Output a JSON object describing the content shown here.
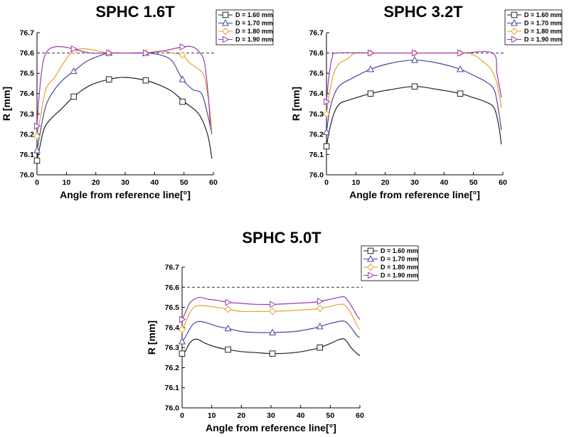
{
  "series_styles": [
    {
      "name": "D = 1.60 mm",
      "color": "#222222",
      "marker": "square"
    },
    {
      "name": "D = 1.70 mm",
      "color": "#4646a0",
      "marker": "triangle-up"
    },
    {
      "name": "D = 1.80 mm",
      "color": "#e8a030",
      "marker": "diamond"
    },
    {
      "name": "D = 1.90 mm",
      "color": "#9a3ab5",
      "marker": "triangle-right"
    }
  ],
  "chart_data": [
    {
      "type": "line",
      "title": "SPHC 1.6T",
      "xlabel": "Angle from reference line[°]",
      "ylabel": "R [mm]",
      "xlim": [
        0,
        60
      ],
      "ylim": [
        76.0,
        76.7
      ],
      "xticks": [
        "0",
        "10",
        "20",
        "30",
        "40",
        "50",
        "60"
      ],
      "yticks": [
        "76.0",
        "76.1",
        "76.2",
        "76.3",
        "76.4",
        "76.5",
        "76.6",
        "76.7"
      ],
      "reference_line": 76.6,
      "legend": "top-right",
      "series": [
        {
          "name": "D = 1.60 mm",
          "x": [
            0,
            1,
            2.5,
            5,
            8,
            12.5,
            18,
            24.5,
            30,
            37,
            42,
            46,
            50,
            55,
            58,
            59.5
          ],
          "y": [
            76.07,
            76.14,
            76.23,
            76.28,
            76.32,
            76.385,
            76.44,
            76.47,
            76.48,
            76.465,
            76.44,
            76.41,
            76.36,
            76.3,
            76.2,
            76.08
          ],
          "markers_x": [
            0,
            12.5,
            24.5,
            37,
            49.5
          ],
          "markers_y": [
            76.07,
            76.385,
            76.47,
            76.465,
            76.36
          ]
        },
        {
          "name": "D = 1.70 mm",
          "x": [
            0,
            1,
            3,
            6,
            9,
            12.5,
            17,
            22,
            25,
            30,
            37,
            42,
            46,
            49.5,
            53,
            56,
            58,
            59.5
          ],
          "y": [
            76.12,
            76.2,
            76.34,
            76.42,
            76.47,
            76.51,
            76.56,
            76.59,
            76.6,
            76.6,
            76.6,
            76.59,
            76.56,
            76.47,
            76.42,
            76.4,
            76.3,
            76.2
          ],
          "markers_x": [
            0,
            12.5,
            24.5,
            37,
            49.5
          ],
          "markers_y": [
            76.12,
            76.51,
            76.6,
            76.6,
            76.47
          ]
        },
        {
          "name": "D = 1.80 mm",
          "x": [
            0,
            1,
            3,
            6,
            9,
            12.5,
            17,
            24.5,
            30,
            37,
            42,
            46,
            49.5,
            52,
            55,
            57,
            58.5,
            59.5
          ],
          "y": [
            76.19,
            76.27,
            76.42,
            76.48,
            76.55,
            76.61,
            76.62,
            76.6,
            76.6,
            76.6,
            76.61,
            76.6,
            76.59,
            76.55,
            76.52,
            76.48,
            76.35,
            76.22
          ],
          "markers_x": [
            0,
            12.5,
            24.5,
            37,
            49.5
          ],
          "markers_y": [
            76.19,
            76.61,
            76.6,
            76.6,
            76.59
          ]
        },
        {
          "name": "D = 1.90 mm",
          "x": [
            0,
            0.8,
            2,
            3.5,
            6,
            9,
            12.5,
            18,
            24.5,
            30,
            37,
            43,
            49.5,
            53,
            55.5,
            57,
            58.2,
            59
          ],
          "y": [
            76.24,
            76.4,
            76.55,
            76.61,
            76.63,
            76.63,
            76.62,
            76.6,
            76.6,
            76.6,
            76.6,
            76.61,
            76.63,
            76.63,
            76.6,
            76.55,
            76.4,
            76.24
          ],
          "markers_x": [
            0,
            12.5,
            24.5,
            37,
            49.5
          ],
          "markers_y": [
            76.24,
            76.62,
            76.6,
            76.6,
            76.63
          ]
        }
      ]
    },
    {
      "type": "line",
      "title": "SPHC 3.2T",
      "xlabel": "Angle from reference line[°]",
      "ylabel": "R [mm]",
      "xlim": [
        0,
        60
      ],
      "ylim": [
        76.0,
        76.7
      ],
      "xticks": [
        "0",
        "10",
        "20",
        "30",
        "40",
        "50",
        "60"
      ],
      "yticks": [
        "76.0",
        "76.1",
        "76.2",
        "76.3",
        "76.4",
        "76.5",
        "76.6",
        "76.7"
      ],
      "reference_line": 76.6,
      "legend": "top-right",
      "series": [
        {
          "name": "D = 1.60 mm",
          "x": [
            0,
            1,
            2.5,
            4.5,
            8,
            15,
            22,
            30,
            38,
            45.5,
            50,
            54,
            57,
            58.5,
            59.5
          ],
          "y": [
            76.14,
            76.22,
            76.3,
            76.35,
            76.37,
            76.4,
            76.42,
            76.435,
            76.42,
            76.4,
            76.38,
            76.36,
            76.33,
            76.25,
            76.15
          ],
          "markers_x": [
            0,
            15,
            30,
            45.5
          ],
          "markers_y": [
            76.14,
            76.4,
            76.435,
            76.4
          ]
        },
        {
          "name": "D = 1.70 mm",
          "x": [
            0,
            1,
            2.5,
            4.5,
            8,
            15,
            22,
            30,
            38,
            45.5,
            50,
            54,
            57,
            58.5,
            59.5
          ],
          "y": [
            76.21,
            76.31,
            76.39,
            76.44,
            76.47,
            76.52,
            76.55,
            76.565,
            76.55,
            76.52,
            76.49,
            76.46,
            76.42,
            76.32,
            76.22
          ],
          "markers_x": [
            0,
            15,
            30,
            45.5
          ],
          "markers_y": [
            76.21,
            76.52,
            76.565,
            76.52
          ]
        },
        {
          "name": "D = 1.80 mm",
          "x": [
            0,
            1,
            2.5,
            4.5,
            7,
            10,
            15,
            30,
            45.5,
            50,
            53,
            56,
            58,
            59.5
          ],
          "y": [
            76.3,
            76.4,
            76.5,
            76.55,
            76.57,
            76.6,
            76.6,
            76.6,
            76.6,
            76.59,
            76.56,
            76.52,
            76.45,
            76.33
          ],
          "markers_x": [
            0,
            15,
            30,
            45.5
          ],
          "markers_y": [
            76.3,
            76.6,
            76.6,
            76.6
          ]
        },
        {
          "name": "D = 1.90 mm",
          "x": [
            0,
            0.8,
            2,
            3.5,
            15,
            30,
            45.5,
            56.5,
            58,
            59.5
          ],
          "y": [
            76.36,
            76.48,
            76.58,
            76.6,
            76.6,
            76.6,
            76.6,
            76.6,
            76.5,
            76.38
          ],
          "markers_x": [
            0,
            15,
            30,
            45.5
          ],
          "markers_y": [
            76.36,
            76.6,
            76.6,
            76.6
          ]
        }
      ]
    },
    {
      "type": "line",
      "title": "SPHC 5.0T",
      "xlabel": "Angle from reference line[°]",
      "ylabel": "R [mm]",
      "xlim": [
        0,
        60
      ],
      "ylim": [
        76.0,
        76.7
      ],
      "xticks": [
        "0",
        "10",
        "20",
        "30",
        "40",
        "50",
        "60"
      ],
      "yticks": [
        "76.0",
        "76.1",
        "76.2",
        "76.3",
        "76.4",
        "76.5",
        "76.6",
        "76.7"
      ],
      "reference_line": 76.6,
      "legend": "top-right",
      "series": [
        {
          "name": "D = 1.60 mm",
          "x": [
            0,
            1,
            2.5,
            4,
            5.5,
            8,
            12,
            15.5,
            20,
            25,
            30.5,
            38,
            44,
            46.5,
            50,
            53,
            55,
            57,
            59,
            60
          ],
          "y": [
            76.27,
            76.28,
            76.32,
            76.34,
            76.34,
            76.32,
            76.3,
            76.29,
            76.28,
            76.275,
            76.27,
            76.275,
            76.29,
            76.3,
            76.32,
            76.34,
            76.34,
            76.3,
            76.27,
            76.26
          ],
          "markers_x": [
            0,
            15.5,
            30.5,
            46.5
          ],
          "markers_y": [
            76.27,
            76.29,
            76.27,
            76.3
          ]
        },
        {
          "name": "D = 1.70 mm",
          "x": [
            0,
            1,
            2.5,
            4,
            6,
            9,
            12,
            15.5,
            20,
            25,
            30.5,
            38,
            44,
            46.5,
            50,
            53,
            55,
            57,
            59,
            60
          ],
          "y": [
            76.33,
            76.35,
            76.39,
            76.42,
            76.43,
            76.42,
            76.405,
            76.395,
            76.38,
            76.375,
            76.375,
            76.38,
            76.395,
            76.405,
            76.42,
            76.43,
            76.43,
            76.4,
            76.36,
            76.35
          ],
          "markers_x": [
            0,
            15.5,
            30.5,
            46.5
          ],
          "markers_y": [
            76.33,
            76.395,
            76.375,
            76.405
          ]
        },
        {
          "name": "D = 1.80 mm",
          "x": [
            0,
            1,
            2.5,
            4,
            6,
            9,
            12,
            15.5,
            20,
            25,
            30.5,
            38,
            44,
            46.5,
            50,
            53,
            55,
            57,
            59,
            60
          ],
          "y": [
            76.39,
            76.42,
            76.47,
            76.5,
            76.51,
            76.505,
            76.5,
            76.49,
            76.48,
            76.48,
            76.48,
            76.485,
            76.49,
            76.495,
            76.505,
            76.515,
            76.51,
            76.47,
            76.41,
            76.39
          ],
          "markers_x": [
            0,
            15.5,
            30.5,
            46.5
          ],
          "markers_y": [
            76.39,
            76.49,
            76.48,
            76.495
          ]
        },
        {
          "name": "D = 1.90 mm",
          "x": [
            0,
            1,
            2.5,
            4,
            6,
            9,
            12,
            15.5,
            20,
            25,
            30.5,
            38,
            44,
            46.5,
            50,
            53,
            55,
            57,
            59,
            60
          ],
          "y": [
            76.44,
            76.47,
            76.52,
            76.54,
            76.55,
            76.54,
            76.535,
            76.525,
            76.52,
            76.515,
            76.515,
            76.52,
            76.525,
            76.53,
            76.54,
            76.55,
            76.55,
            76.51,
            76.46,
            76.44
          ],
          "markers_x": [
            0,
            15.5,
            30.5,
            46.5
          ],
          "markers_y": [
            76.44,
            76.525,
            76.515,
            76.53
          ]
        }
      ]
    }
  ]
}
